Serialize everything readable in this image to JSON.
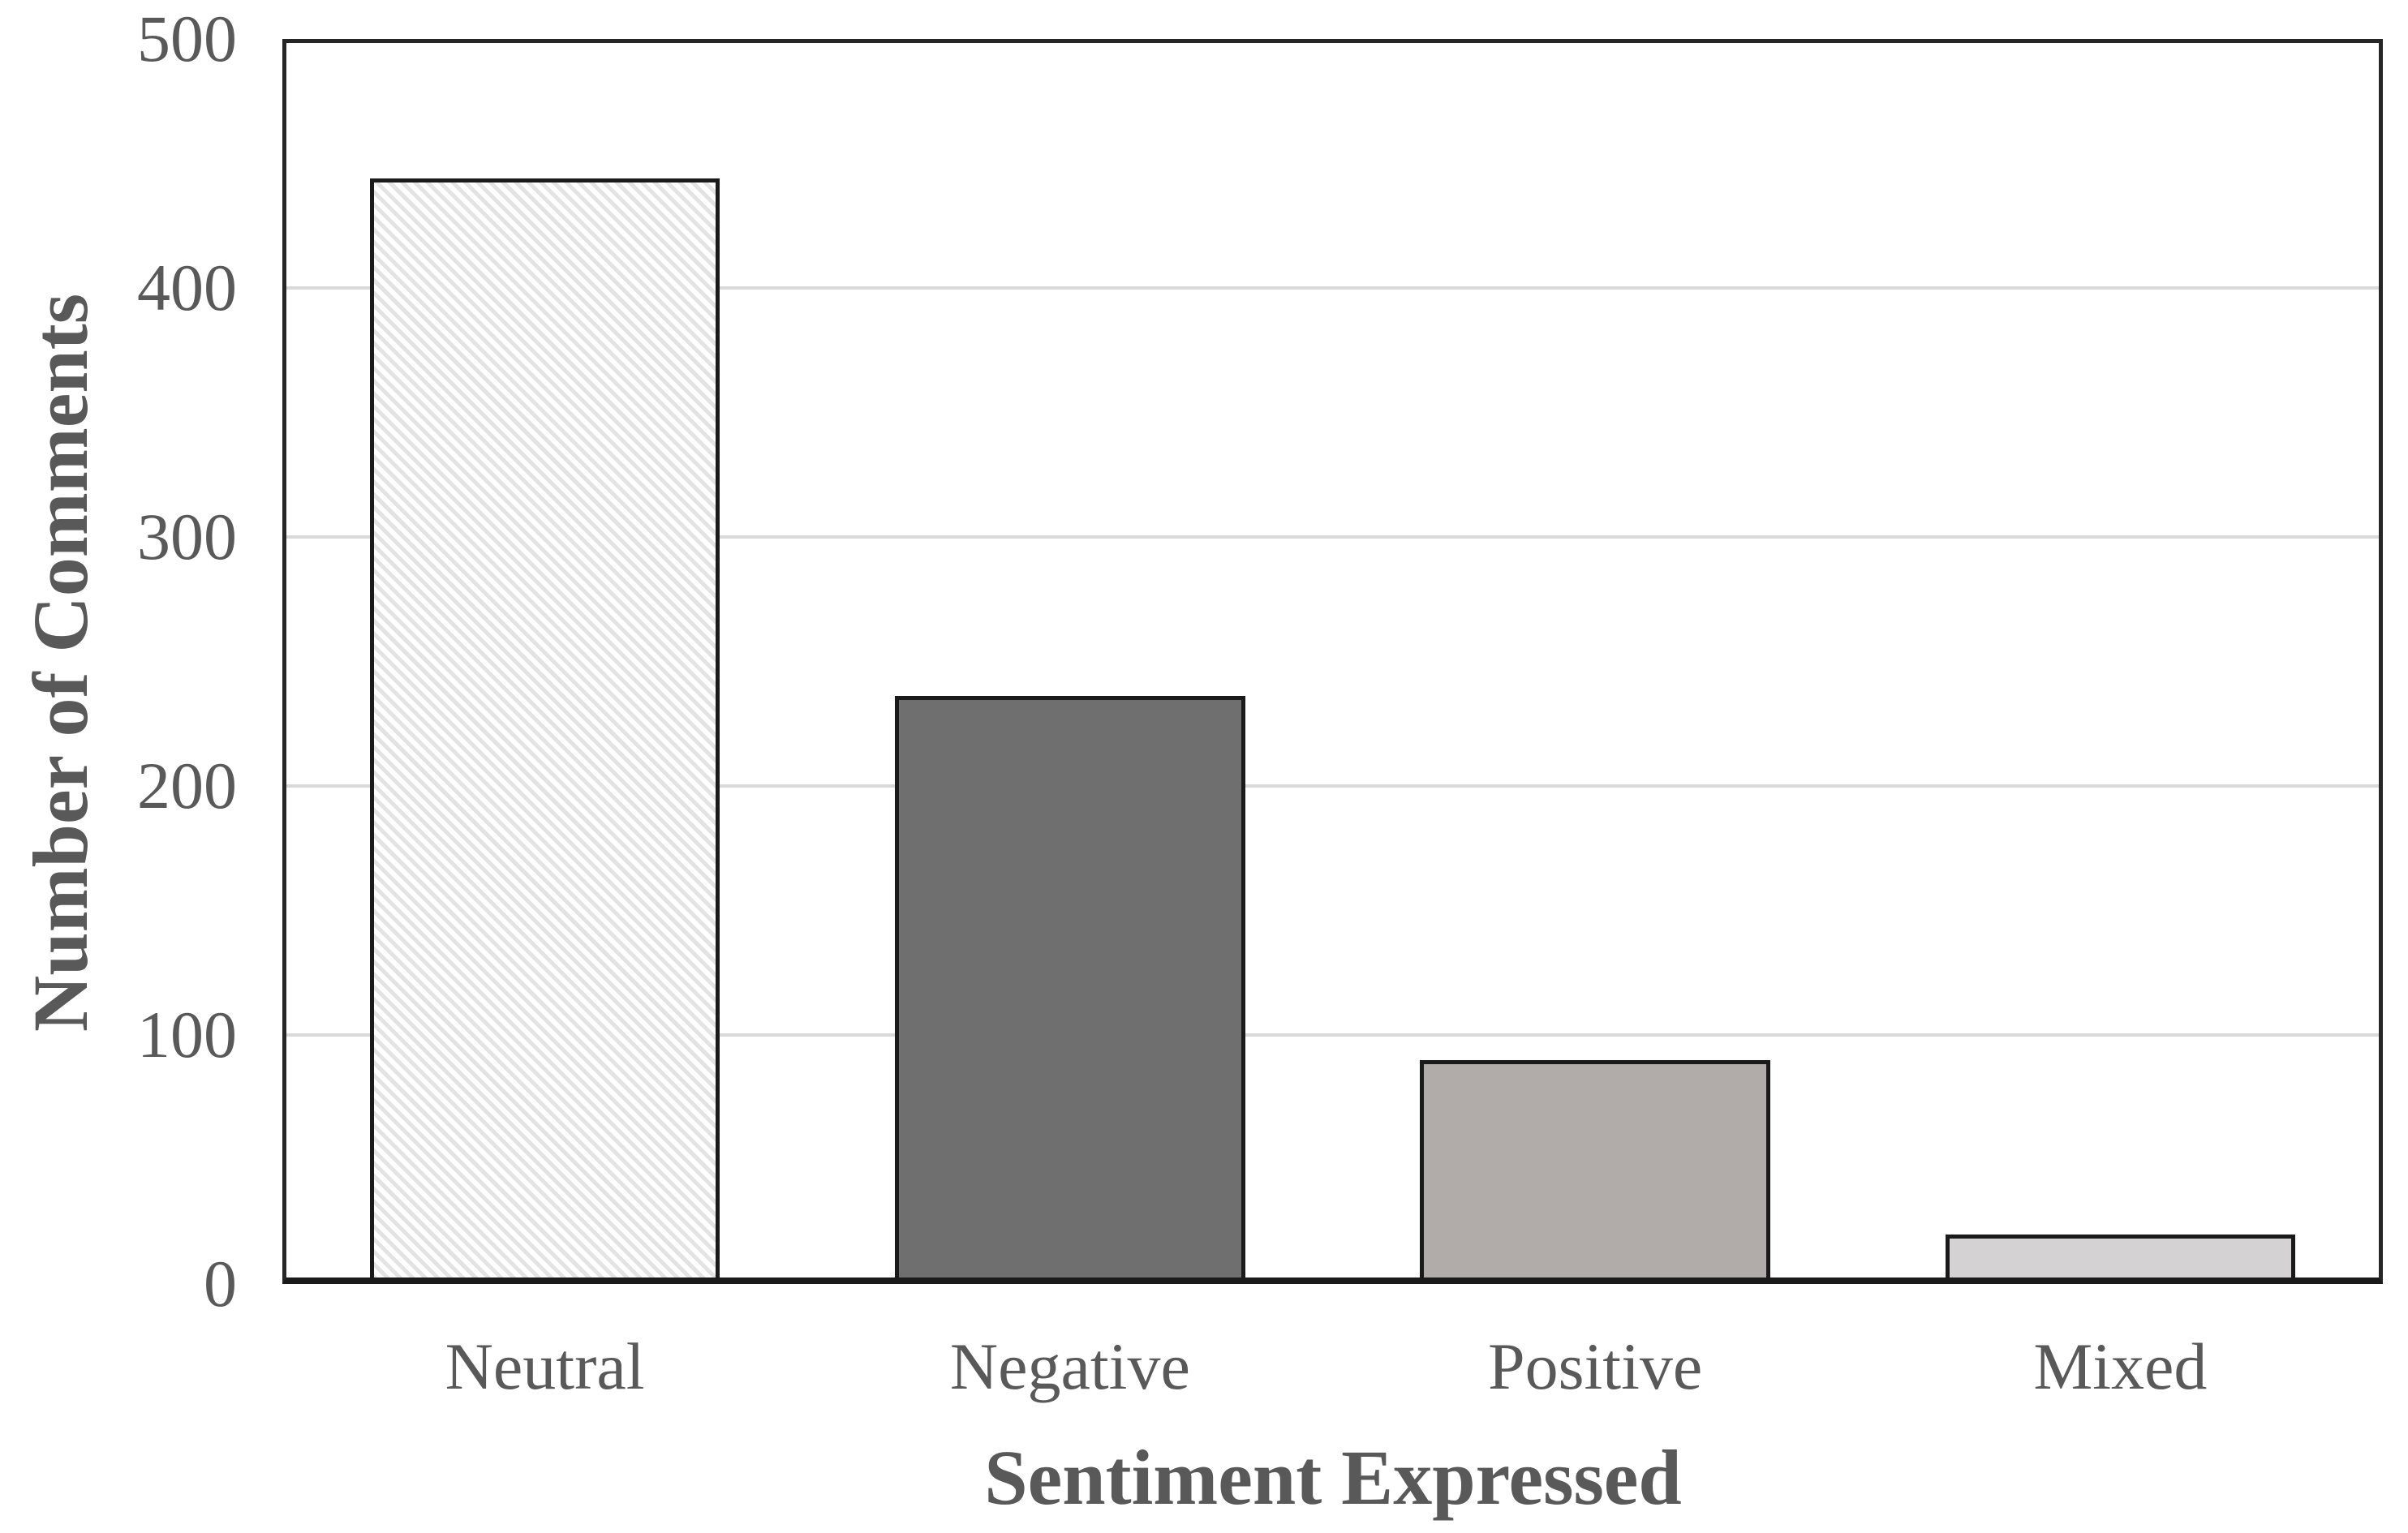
{
  "chart_data": {
    "type": "bar",
    "title": "",
    "xlabel": "Sentiment Expressed",
    "ylabel": "Number of Comments",
    "categories": [
      "Neutral",
      "Negative",
      "Positive",
      "Mixed"
    ],
    "values": [
      444,
      236,
      90,
      20
    ],
    "ylim": [
      0,
      500
    ],
    "yticks": [
      0,
      100,
      200,
      300,
      400,
      500
    ],
    "grid": "horizontal-gridlines-at-100s",
    "legend": "none",
    "bar_styles": [
      {
        "fill": "#ffffff",
        "pattern": "diagonal-hatch",
        "pattern_color": "#e3e3e3"
      },
      {
        "fill": "#6f6f6f",
        "pattern": "solid"
      },
      {
        "fill": "#b1acaa",
        "pattern": "solid"
      },
      {
        "fill": "#d4d2d2",
        "pattern": "solid"
      }
    ],
    "bar_border_color": "#1a1a1a",
    "gridline_color": "#d9d9d9",
    "axis_frame_color": "#262626",
    "text_color": "#595959"
  }
}
